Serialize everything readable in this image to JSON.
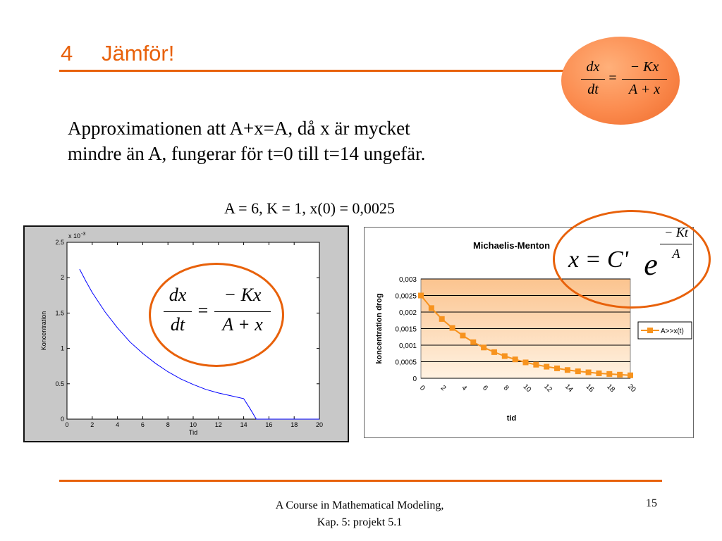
{
  "slide": {
    "number": "4",
    "title": "Jämför!",
    "body_line1": "Approximationen att A+x=A, då x är mycket",
    "body_line2": "mindre än A, fungerar för t=0 till t=14 ungefär.",
    "params": "A = 6, K = 1, x(0) = 0,0025",
    "footer_line1": "A Course in Mathematical Modeling,",
    "footer_line2": "Kap. 5: projekt 5.1",
    "page": "15"
  },
  "equation": {
    "lhs_num": "dx",
    "lhs_den": "dt",
    "equals": "=",
    "rhs_num": "− Kx",
    "rhs_den": "A + x"
  },
  "solution": {
    "lhs": "x = C'",
    "base": "e",
    "exp_num": "− Kt",
    "exp_den": "A"
  },
  "colors": {
    "accent": "#e8610a",
    "series": "#f7931e",
    "plot_bg": "#fcd3a8"
  },
  "chart_data": [
    {
      "type": "line",
      "title": "",
      "xlabel": "Tid",
      "ylabel": "Koncentration",
      "scale_label": "x 10",
      "scale_exp": "-3",
      "xlim": [
        0,
        20
      ],
      "ylim": [
        0,
        2.5
      ],
      "xticks": [
        "0",
        "2",
        "4",
        "6",
        "8",
        "10",
        "12",
        "14",
        "16",
        "18",
        "20"
      ],
      "yticks": [
        "0",
        "0.5",
        "1",
        "1.5",
        "2",
        "2.5"
      ],
      "series": [
        {
          "color": "#0000ff",
          "x": [
            1,
            1.5,
            2,
            3,
            4,
            5,
            6,
            7,
            8,
            9,
            10,
            11,
            12,
            13,
            14,
            14.5,
            15,
            16,
            17,
            18,
            19,
            20
          ],
          "y": [
            2.12,
            1.95,
            1.79,
            1.52,
            1.29,
            1.09,
            0.93,
            0.79,
            0.67,
            0.57,
            0.49,
            0.42,
            0.37,
            0.33,
            0.29,
            0.15,
            0.0,
            0.0,
            0.0,
            0.0,
            0.0,
            0.0
          ]
        }
      ]
    },
    {
      "type": "line",
      "title": "Michaelis-Menton",
      "xlabel": "tid",
      "ylabel": "koncentration drog",
      "xlim": [
        0,
        20
      ],
      "ylim": [
        0,
        0.003
      ],
      "xticks": [
        "0",
        "2",
        "4",
        "6",
        "8",
        "10",
        "12",
        "14",
        "16",
        "18",
        "20"
      ],
      "yticks": [
        "0",
        "0,0005",
        "0,001",
        "0,0015",
        "0,002",
        "0,0025",
        "0,003"
      ],
      "legend": "right",
      "series": [
        {
          "name": "A>>x(t)",
          "x": [
            0,
            1,
            2,
            3,
            4,
            5,
            6,
            7,
            8,
            9,
            10,
            11,
            12,
            13,
            14,
            15,
            16,
            17,
            18,
            19,
            20
          ],
          "y": [
            0.0025,
            0.00212,
            0.00179,
            0.00152,
            0.00129,
            0.00109,
            0.00093,
            0.00079,
            0.00067,
            0.00057,
            0.00048,
            0.00041,
            0.00035,
            0.0003,
            0.00025,
            0.00021,
            0.00018,
            0.00015,
            0.00013,
            0.00011,
            9e-05
          ]
        }
      ]
    }
  ]
}
